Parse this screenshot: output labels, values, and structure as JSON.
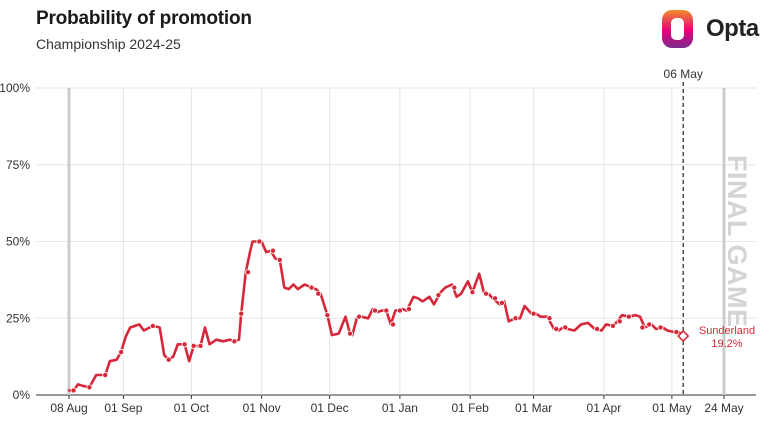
{
  "header": {
    "title": "Probability of promotion",
    "subtitle": "Championship 2024-25"
  },
  "brand": {
    "name": "Opta",
    "colors": {
      "orange": "#f28c28",
      "pink": "#e4007c",
      "purple": "#7a2d8c"
    }
  },
  "colors": {
    "series": "#d62839",
    "grid": "#e6e6e6",
    "season_bar": "#cccccc",
    "axis": "#333333"
  },
  "annotations": {
    "current_date": "06 May",
    "final_game": "FINAL GAME",
    "team": "Sunderland",
    "team_value": "19.2%"
  },
  "chart_data": {
    "type": "line",
    "title": "Probability of promotion",
    "subtitle": "Championship 2024-25",
    "xlabel": "",
    "ylabel": "",
    "ylim": [
      0,
      100
    ],
    "y_ticks": [
      "0%",
      "25%",
      "50%",
      "75%",
      "100%"
    ],
    "y_tick_values": [
      0,
      25,
      50,
      75,
      100
    ],
    "x_ticks": [
      "08 Aug",
      "01 Sep",
      "01 Oct",
      "01 Nov",
      "01 Dec",
      "01 Jan",
      "01 Feb",
      "01 Mar",
      "01 Apr",
      "01 May",
      "24 May"
    ],
    "x_tick_dates": [
      "2024-08-08",
      "2024-09-01",
      "2024-10-01",
      "2024-11-01",
      "2024-12-01",
      "2025-01-01",
      "2025-02-01",
      "2025-03-01",
      "2025-04-01",
      "2025-05-01",
      "2025-05-24"
    ],
    "xlim": [
      "2024-08-08",
      "2025-05-24"
    ],
    "grid": true,
    "season_start": "2024-08-08",
    "season_end": "2025-05-24",
    "current_date": "2025-05-06",
    "series": [
      {
        "name": "Sunderland",
        "color": "#d62839",
        "points": [
          [
            "2024-08-08",
            1.5
          ],
          [
            "2024-08-10",
            1.5
          ],
          [
            "2024-08-12",
            3.5
          ],
          [
            "2024-08-14",
            3
          ],
          [
            "2024-08-17",
            2.5
          ],
          [
            "2024-08-20",
            6.5
          ],
          [
            "2024-08-24",
            6.5
          ],
          [
            "2024-08-26",
            11
          ],
          [
            "2024-08-29",
            11.5
          ],
          [
            "2024-08-31",
            14
          ],
          [
            "2024-09-02",
            19
          ],
          [
            "2024-09-04",
            22
          ],
          [
            "2024-09-08",
            23
          ],
          [
            "2024-09-10",
            21
          ],
          [
            "2024-09-14",
            22.5
          ],
          [
            "2024-09-17",
            22
          ],
          [
            "2024-09-19",
            13
          ],
          [
            "2024-09-21",
            11.5
          ],
          [
            "2024-09-23",
            12.5
          ],
          [
            "2024-09-25",
            16.5
          ],
          [
            "2024-09-28",
            16.5
          ],
          [
            "2024-09-30",
            11
          ],
          [
            "2024-10-02",
            16
          ],
          [
            "2024-10-05",
            16
          ],
          [
            "2024-10-07",
            22
          ],
          [
            "2024-10-09",
            16.5
          ],
          [
            "2024-10-12",
            18
          ],
          [
            "2024-10-15",
            17.5
          ],
          [
            "2024-10-18",
            18
          ],
          [
            "2024-10-20",
            17.5
          ],
          [
            "2024-10-22",
            18
          ],
          [
            "2024-10-23",
            26.5
          ],
          [
            "2024-10-25",
            40
          ],
          [
            "2024-10-27",
            47
          ],
          [
            "2024-10-28",
            50
          ],
          [
            "2024-11-01",
            50
          ],
          [
            "2024-11-03",
            46.5
          ],
          [
            "2024-11-05",
            47
          ],
          [
            "2024-11-07",
            44.5
          ],
          [
            "2024-11-09",
            44
          ],
          [
            "2024-11-11",
            35
          ],
          [
            "2024-11-13",
            34.5
          ],
          [
            "2024-11-15",
            36
          ],
          [
            "2024-11-17",
            34.5
          ],
          [
            "2024-11-20",
            36
          ],
          [
            "2024-11-23",
            35
          ],
          [
            "2024-11-25",
            34.5
          ],
          [
            "2024-11-27",
            33
          ],
          [
            "2024-11-30",
            26
          ],
          [
            "2024-12-02",
            19.5
          ],
          [
            "2024-12-05",
            20
          ],
          [
            "2024-12-08",
            25.5
          ],
          [
            "2024-12-10",
            20
          ],
          [
            "2024-12-11",
            19.5
          ],
          [
            "2024-12-13",
            25
          ],
          [
            "2024-12-15",
            25.5
          ],
          [
            "2024-12-18",
            25
          ],
          [
            "2024-12-20",
            28
          ],
          [
            "2024-12-22",
            27
          ],
          [
            "2024-12-24",
            27.5
          ],
          [
            "2024-12-26",
            27.5
          ],
          [
            "2024-12-28",
            23
          ],
          [
            "2024-12-30",
            27.5
          ],
          [
            "2025-01-02",
            28
          ],
          [
            "2025-01-04",
            27.5
          ],
          [
            "2025-01-07",
            32
          ],
          [
            "2025-01-09",
            31.5
          ],
          [
            "2025-01-11",
            30.5
          ],
          [
            "2025-01-14",
            32
          ],
          [
            "2025-01-16",
            29.5
          ],
          [
            "2025-01-19",
            33.5
          ],
          [
            "2025-01-21",
            35
          ],
          [
            "2025-01-24",
            36
          ],
          [
            "2025-01-26",
            32
          ],
          [
            "2025-01-28",
            33
          ],
          [
            "2025-01-31",
            37
          ],
          [
            "2025-02-02",
            33.5
          ],
          [
            "2025-02-05",
            39.5
          ],
          [
            "2025-02-07",
            33.5
          ],
          [
            "2025-02-09",
            33
          ],
          [
            "2025-02-11",
            31.5
          ],
          [
            "2025-02-14",
            29.5
          ],
          [
            "2025-02-16",
            30.5
          ],
          [
            "2025-02-18",
            24
          ],
          [
            "2025-02-21",
            25
          ],
          [
            "2025-02-23",
            25
          ],
          [
            "2025-02-25",
            29
          ],
          [
            "2025-02-28",
            26.5
          ],
          [
            "2025-03-02",
            26.5
          ],
          [
            "2025-03-04",
            25.5
          ],
          [
            "2025-03-07",
            25.5
          ],
          [
            "2025-03-10",
            21.5
          ],
          [
            "2025-03-12",
            21
          ],
          [
            "2025-03-14",
            22
          ],
          [
            "2025-03-16",
            21.5
          ],
          [
            "2025-03-19",
            21
          ],
          [
            "2025-03-22",
            23
          ],
          [
            "2025-03-25",
            23.5
          ],
          [
            "2025-03-28",
            21.5
          ],
          [
            "2025-03-31",
            21
          ],
          [
            "2025-04-02",
            23
          ],
          [
            "2025-04-05",
            22.5
          ],
          [
            "2025-04-07",
            24
          ],
          [
            "2025-04-09",
            26
          ],
          [
            "2025-04-12",
            25.5
          ],
          [
            "2025-04-15",
            26
          ],
          [
            "2025-04-17",
            25.5
          ],
          [
            "2025-04-19",
            22
          ],
          [
            "2025-04-22",
            23
          ],
          [
            "2025-04-24",
            21.5
          ],
          [
            "2025-04-27",
            22
          ],
          [
            "2025-04-29",
            21
          ],
          [
            "2025-05-02",
            20.5
          ],
          [
            "2025-05-04",
            20.5
          ],
          [
            "2025-05-06",
            19.2
          ]
        ],
        "markers": [
          [
            "2024-08-10",
            1.5
          ],
          [
            "2024-08-17",
            2.5
          ],
          [
            "2024-08-24",
            6.5
          ],
          [
            "2024-08-31",
            14
          ],
          [
            "2024-09-14",
            22.5
          ],
          [
            "2024-09-21",
            11.5
          ],
          [
            "2024-09-28",
            16.5
          ],
          [
            "2024-10-02",
            16
          ],
          [
            "2024-10-05",
            16
          ],
          [
            "2024-10-20",
            17.5
          ],
          [
            "2024-10-23",
            26.5
          ],
          [
            "2024-10-26",
            40
          ],
          [
            "2024-10-31",
            50
          ],
          [
            "2024-11-06",
            47
          ],
          [
            "2024-11-09",
            44
          ],
          [
            "2024-11-23",
            35
          ],
          [
            "2024-11-26",
            33
          ],
          [
            "2024-11-30",
            26
          ],
          [
            "2024-12-10",
            20
          ],
          [
            "2024-12-14",
            25.5
          ],
          [
            "2024-12-21",
            27.5
          ],
          [
            "2024-12-26",
            27.5
          ],
          [
            "2024-12-29",
            23
          ],
          [
            "2025-01-01",
            27.5
          ],
          [
            "2025-01-05",
            28
          ],
          [
            "2025-01-18",
            32.5
          ],
          [
            "2025-01-25",
            35
          ],
          [
            "2025-02-02",
            33.5
          ],
          [
            "2025-02-08",
            33
          ],
          [
            "2025-02-12",
            31.5
          ],
          [
            "2025-02-15",
            30
          ],
          [
            "2025-02-21",
            25
          ],
          [
            "2025-03-01",
            26.5
          ],
          [
            "2025-03-08",
            25
          ],
          [
            "2025-03-11",
            21.5
          ],
          [
            "2025-03-15",
            22
          ],
          [
            "2025-03-29",
            21.5
          ],
          [
            "2025-04-05",
            22.5
          ],
          [
            "2025-04-08",
            24
          ],
          [
            "2025-04-12",
            25.5
          ],
          [
            "2025-04-18",
            22
          ],
          [
            "2025-04-21",
            23
          ],
          [
            "2025-04-26",
            22
          ],
          [
            "2025-05-03",
            20.5
          ]
        ],
        "final_marker": [
          "2025-05-06",
          19.2
        ],
        "final_label": "19.2%"
      }
    ]
  }
}
